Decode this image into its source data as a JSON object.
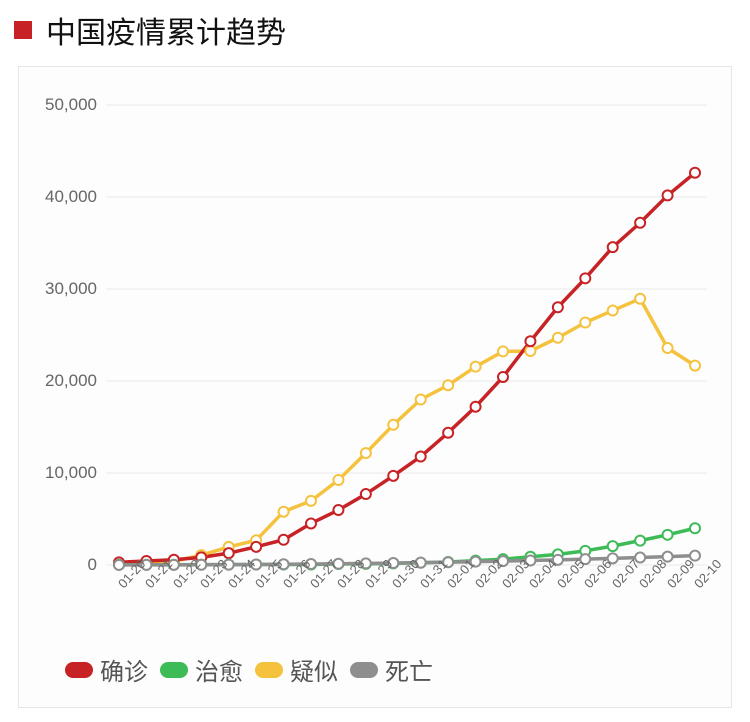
{
  "title": "中国疫情累计趋势",
  "title_marker_color": "#c72326",
  "chart": {
    "type": "line",
    "background_color": "#fdfdfd",
    "border_color": "#e6e6e6",
    "grid_color": "#e9e9e9",
    "grid_on": true,
    "ylim": [
      0,
      50000
    ],
    "yticks": [
      0,
      10000,
      20000,
      30000,
      40000,
      50000
    ],
    "ytick_labels": [
      "0",
      "10,000",
      "20,000",
      "30,000",
      "40,000",
      "50,000"
    ],
    "ytick_color": "#666",
    "ytick_fontsize": 17,
    "x_categories": [
      "01-20",
      "01-21",
      "01-22",
      "01-23",
      "01-24",
      "01-25",
      "01-26",
      "01-27",
      "01-28",
      "01-29",
      "01-30",
      "01-31",
      "02-01",
      "02-02",
      "02-03",
      "02-04",
      "02-05",
      "02-06",
      "02-07",
      "02-08",
      "02-09",
      "02-10"
    ],
    "xtick_fontsize": 13,
    "xtick_color": "#666",
    "xtick_rotation_deg": -48,
    "line_width": 3.5,
    "marker_style": "circle-open-white-fill",
    "marker_radius": 5,
    "marker_fill": "#ffffff",
    "marker_stroke_width": 2,
    "series": [
      {
        "name": "确诊",
        "legend_label": "确诊",
        "color": "#c72326",
        "values": [
          291,
          440,
          571,
          830,
          1287,
          1975,
          2744,
          4515,
          5974,
          7711,
          9692,
          11791,
          14380,
          17205,
          20438,
          24324,
          28018,
          31161,
          34546,
          37198,
          40171,
          42638
        ]
      },
      {
        "name": "治愈",
        "legend_label": "治愈",
        "color": "#3dbb57",
        "values": [
          25,
          28,
          30,
          34,
          38,
          49,
          51,
          60,
          103,
          124,
          171,
          243,
          328,
          475,
          632,
          892,
          1153,
          1540,
          2050,
          2649,
          3281,
          3996
        ]
      },
      {
        "name": "疑似",
        "legend_label": "疑似",
        "color": "#f4c23d",
        "values": [
          54,
          90,
          393,
          1072,
          1965,
          2684,
          5794,
          6973,
          9239,
          12167,
          15238,
          17988,
          19544,
          21558,
          23214,
          23260,
          24702,
          26359,
          27657,
          28942,
          23589,
          21675
        ]
      },
      {
        "name": "死亡",
        "legend_label": "死亡",
        "color": "#8e8e8e",
        "values": [
          6,
          9,
          17,
          25,
          41,
          56,
          80,
          106,
          132,
          170,
          213,
          259,
          304,
          361,
          425,
          490,
          563,
          636,
          722,
          811,
          908,
          1016
        ]
      }
    ],
    "legend_fontsize": 24,
    "legend_text_color": "#555"
  }
}
